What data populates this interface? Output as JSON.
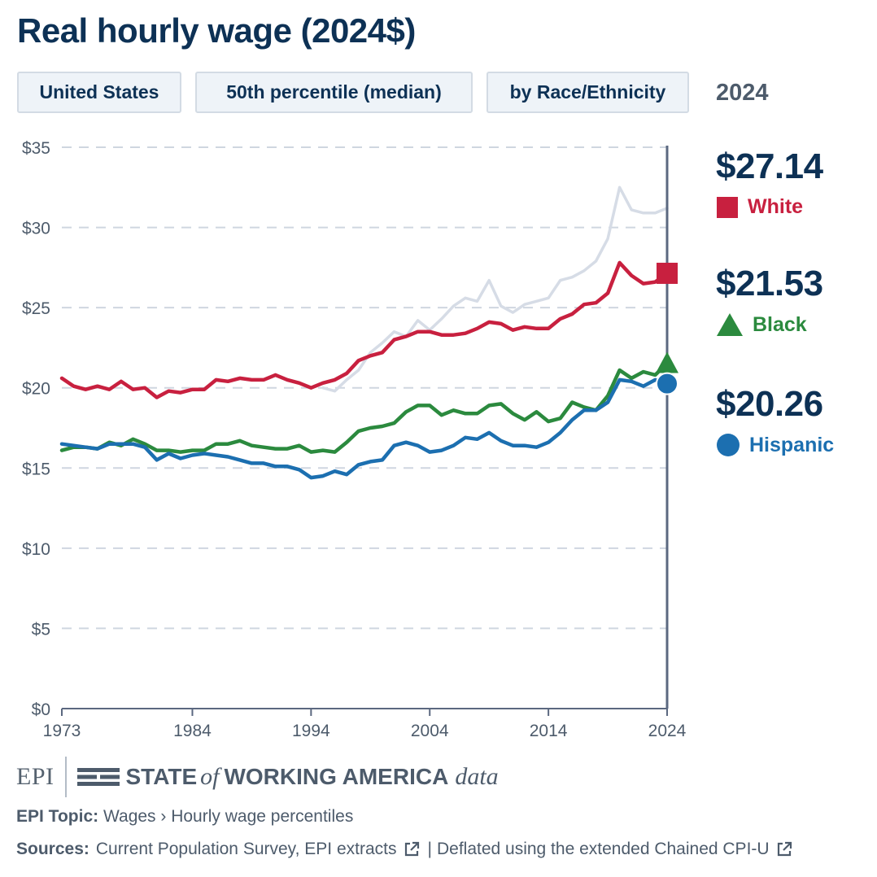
{
  "title": "Real hourly wage (2024$)",
  "filters": {
    "geography": "United States",
    "percentile": "50th percentile (median)",
    "breakdown": "by Race/Ethnicity"
  },
  "selected_year": "2024",
  "colors": {
    "White": "#c8203f",
    "Black": "#2b8a3e",
    "Hispanic": "#1c6fb0",
    "All": "#d6dce6",
    "axis": "#5b6880",
    "grid": "#cfd6e0"
  },
  "chart_data": {
    "type": "line",
    "title": "Real hourly wage (2024$)",
    "xlabel": "",
    "ylabel": "",
    "xlim": [
      1973,
      2024
    ],
    "ylim": [
      0,
      35
    ],
    "x_ticks": [
      "1973",
      "1984",
      "1994",
      "2004",
      "2014",
      "2024"
    ],
    "x_tick_values": [
      1973,
      1984,
      1994,
      2004,
      2014,
      2024
    ],
    "y_ticks": [
      "$0",
      "$5",
      "$10",
      "$15",
      "$20",
      "$25",
      "$30",
      "$35"
    ],
    "y_tick_values": [
      0,
      5,
      10,
      15,
      20,
      25,
      30,
      35
    ],
    "grid": true,
    "highlight_x": 2024,
    "x": [
      1973,
      1974,
      1975,
      1976,
      1977,
      1978,
      1979,
      1980,
      1981,
      1982,
      1983,
      1984,
      1985,
      1986,
      1987,
      1988,
      1989,
      1990,
      1991,
      1992,
      1993,
      1994,
      1995,
      1996,
      1997,
      1998,
      1999,
      2000,
      2001,
      2002,
      2003,
      2004,
      2005,
      2006,
      2007,
      2008,
      2009,
      2010,
      2011,
      2012,
      2013,
      2014,
      2015,
      2016,
      2017,
      2018,
      2019,
      2020,
      2021,
      2022,
      2023,
      2024
    ],
    "series": [
      {
        "key": "All",
        "values": [
          null,
          null,
          null,
          null,
          null,
          null,
          null,
          null,
          null,
          null,
          null,
          null,
          null,
          null,
          null,
          null,
          null,
          null,
          null,
          null,
          null,
          null,
          20.0,
          19.8,
          20.5,
          21.1,
          22.2,
          22.8,
          23.5,
          23.2,
          24.2,
          23.6,
          24.3,
          25.1,
          25.6,
          25.4,
          26.7,
          25.1,
          24.7,
          25.2,
          25.4,
          25.6,
          26.7,
          26.9,
          27.3,
          27.9,
          29.3,
          32.5,
          31.1,
          30.9,
          30.9,
          31.2
        ]
      },
      {
        "name": "White",
        "key": "White",
        "values": [
          20.6,
          20.1,
          19.9,
          20.1,
          19.9,
          20.4,
          19.9,
          20.0,
          19.4,
          19.8,
          19.7,
          19.9,
          19.9,
          20.5,
          20.4,
          20.6,
          20.5,
          20.5,
          20.8,
          20.5,
          20.3,
          20.0,
          20.3,
          20.5,
          20.9,
          21.7,
          22.0,
          22.2,
          23.0,
          23.2,
          23.5,
          23.5,
          23.3,
          23.3,
          23.4,
          23.7,
          24.1,
          24.0,
          23.6,
          23.8,
          23.7,
          23.7,
          24.3,
          24.6,
          25.2,
          25.3,
          25.9,
          27.8,
          27.0,
          26.5,
          26.6,
          27.14
        ]
      },
      {
        "name": "Black",
        "key": "Black",
        "values": [
          16.1,
          16.3,
          16.3,
          16.2,
          16.6,
          16.4,
          16.8,
          16.5,
          16.1,
          16.1,
          16.0,
          16.1,
          16.1,
          16.5,
          16.5,
          16.7,
          16.4,
          16.3,
          16.2,
          16.2,
          16.4,
          16.0,
          16.1,
          16.0,
          16.6,
          17.3,
          17.5,
          17.6,
          17.8,
          18.5,
          18.9,
          18.9,
          18.3,
          18.6,
          18.4,
          18.4,
          18.9,
          19.0,
          18.4,
          18.0,
          18.5,
          17.9,
          18.1,
          19.1,
          18.8,
          18.6,
          19.5,
          21.1,
          20.6,
          21.0,
          20.8,
          21.53
        ]
      },
      {
        "name": "Hispanic",
        "key": "Hispanic",
        "values": [
          16.5,
          16.4,
          16.3,
          16.2,
          16.5,
          16.5,
          16.5,
          16.3,
          15.5,
          15.9,
          15.6,
          15.8,
          15.9,
          15.8,
          15.7,
          15.5,
          15.3,
          15.3,
          15.1,
          15.1,
          14.9,
          14.4,
          14.5,
          14.8,
          14.6,
          15.2,
          15.4,
          15.5,
          16.4,
          16.6,
          16.4,
          16.0,
          16.1,
          16.4,
          16.9,
          16.8,
          17.2,
          16.7,
          16.4,
          16.4,
          16.3,
          16.6,
          17.2,
          18.0,
          18.6,
          18.6,
          19.1,
          20.5,
          20.4,
          20.1,
          20.5,
          20.26
        ]
      }
    ],
    "current_values": [
      {
        "name": "White",
        "value_label": "$27.14",
        "marker": "square"
      },
      {
        "name": "Black",
        "value_label": "$21.53",
        "marker": "triangle"
      },
      {
        "name": "Hispanic",
        "value_label": "$20.26",
        "marker": "circle"
      }
    ]
  },
  "footer": {
    "epi_logo": "EPI",
    "brand_state": "STATE",
    "brand_of": "of",
    "brand_working": "WORKING AMERICA",
    "brand_data": "data",
    "topic_label": "EPI Topic:",
    "topic_value": "Wages › Hourly wage percentiles",
    "sources_label": "Sources:",
    "source_1": "Current Population Survey, EPI extracts",
    "source_sep": "|",
    "source_2": "Deflated using the extended Chained CPI-U",
    "external_link_icon": "external-link-icon",
    "flag_icon": "flag-lines-icon"
  }
}
